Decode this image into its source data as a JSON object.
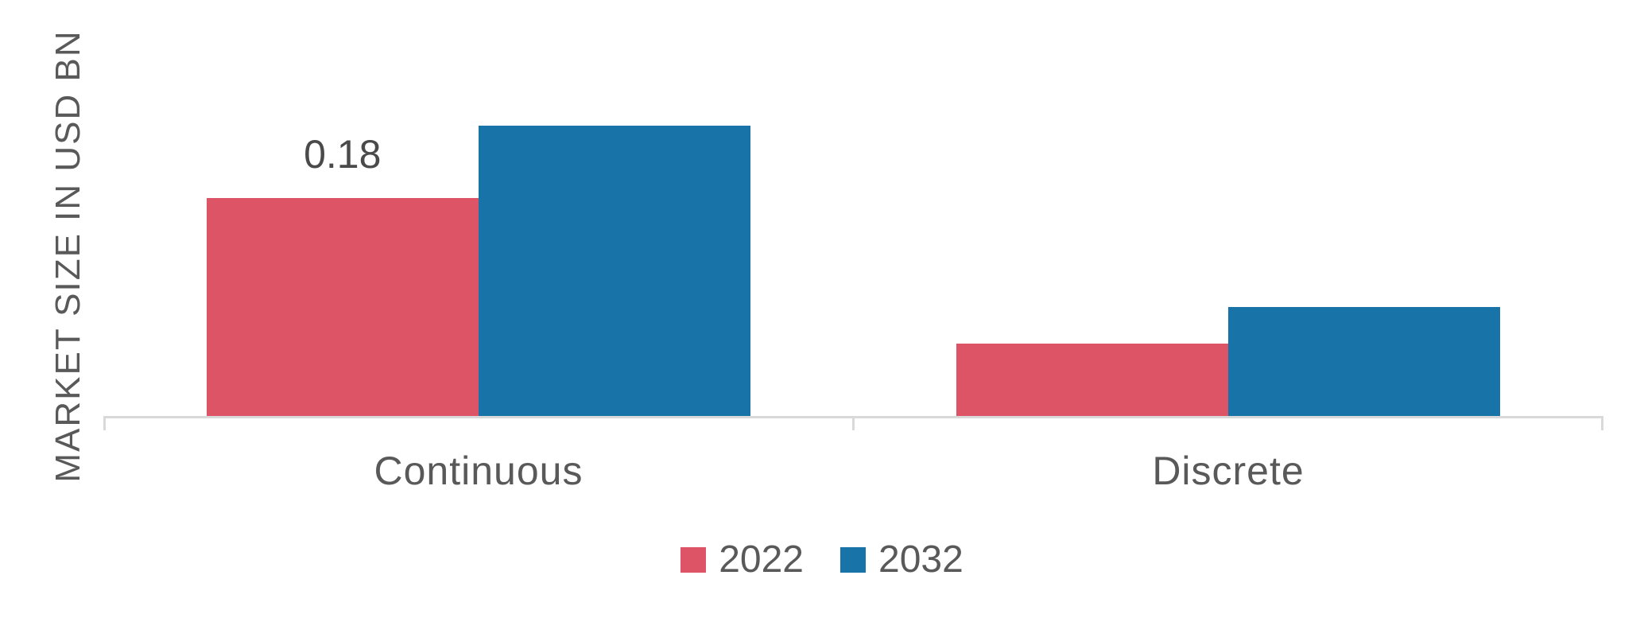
{
  "chart_data": {
    "type": "bar",
    "title": "",
    "ylabel": "MARKET SIZE IN USD BN",
    "xlabel": "",
    "categories": [
      "Continuous",
      "Discrete"
    ],
    "series": [
      {
        "name": "2022",
        "color": "#dd5467",
        "values": [
          0.18,
          0.06
        ],
        "labels": [
          "0.18",
          ""
        ]
      },
      {
        "name": "2032",
        "color": "#1874a8",
        "values": [
          0.24,
          0.09
        ],
        "labels": [
          "",
          ""
        ]
      }
    ],
    "ylim": [
      0,
      0.26
    ],
    "grid": false,
    "legend_position": "bottom",
    "axis_color": "#d9d9d9",
    "text_color": "#595959"
  }
}
